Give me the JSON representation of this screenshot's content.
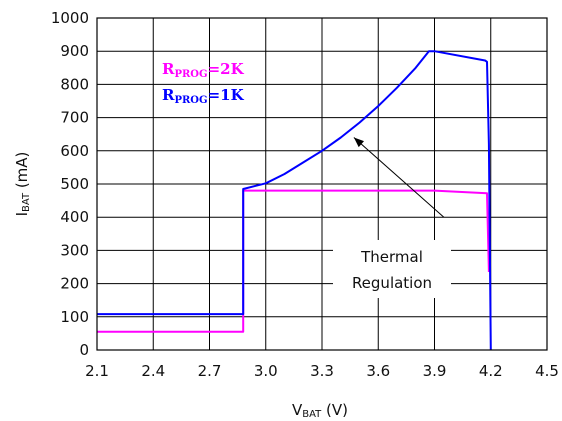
{
  "chart_data": {
    "type": "line",
    "title": "",
    "xlabel": {
      "main": "V",
      "sub": "BAT",
      "unit": " (V)"
    },
    "ylabel": {
      "main": "I",
      "sub": "BAT",
      "unit": " (mA)"
    },
    "xlim": [
      2.1,
      4.5
    ],
    "ylim": [
      0,
      1000
    ],
    "x_ticks": [
      "2.1",
      "2.4",
      "2.7",
      "3.0",
      "3.3",
      "3.6",
      "3.9",
      "4.2",
      "4.5"
    ],
    "y_ticks": [
      "0",
      "100",
      "200",
      "300",
      "400",
      "500",
      "600",
      "700",
      "800",
      "900",
      "1000"
    ],
    "grid": true,
    "series": [
      {
        "name": "R_PROG=2K",
        "label": {
          "main": "R",
          "sub": "PROG",
          "rest": "=2K"
        },
        "color": "#ff00ff",
        "points": [
          [
            2.1,
            55
          ],
          [
            2.88,
            55
          ],
          [
            2.88,
            480
          ],
          [
            3.9,
            480
          ],
          [
            4.18,
            472
          ],
          [
            4.19,
            235
          ]
        ]
      },
      {
        "name": "R_PROG=1K",
        "label": {
          "main": "R",
          "sub": "PROG",
          "rest": "=1K"
        },
        "color": "#0000ff",
        "points": [
          [
            2.1,
            108
          ],
          [
            2.88,
            108
          ],
          [
            2.88,
            485
          ],
          [
            3.0,
            502
          ],
          [
            3.1,
            530
          ],
          [
            3.2,
            565
          ],
          [
            3.3,
            600
          ],
          [
            3.4,
            640
          ],
          [
            3.5,
            685
          ],
          [
            3.6,
            735
          ],
          [
            3.7,
            790
          ],
          [
            3.8,
            850
          ],
          [
            3.87,
            900
          ],
          [
            3.9,
            900
          ],
          [
            4.17,
            872
          ],
          [
            4.18,
            868
          ],
          [
            4.19,
            620
          ],
          [
            4.2,
            0
          ]
        ]
      }
    ],
    "annotation": {
      "lines": [
        "Thermal",
        "Regulation"
      ],
      "arrow_from": [
        3.95,
        400
      ],
      "arrow_to": [
        3.47,
        640
      ]
    }
  }
}
